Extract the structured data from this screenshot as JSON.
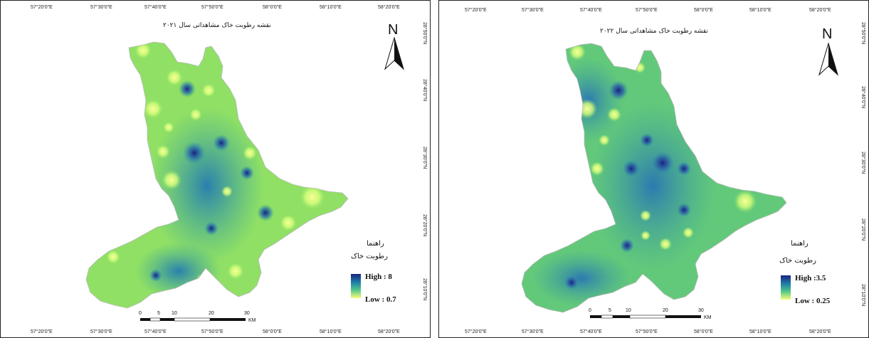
{
  "panels": [
    {
      "title": "نقشه رطوبت خاک مشاهداتی سال ۲۰۲۱",
      "top_labels": [
        "57°20'0\"E",
        "57°30'0\"E",
        "57°40'0\"E",
        "57°50'0\"E",
        "58°0'0\"E",
        "58°10'0\"E",
        "58°20'0\"E"
      ],
      "bottom_labels": [
        "57°20'0\"E",
        "57°30'0\"E",
        "57°40'0\"E",
        "57°50'0\"E",
        "58°0'0\"E",
        "58°10'0\"E",
        "58°20'0\"E"
      ],
      "right_labels": [
        "28°50'0\"N",
        "28°40'0\"N",
        "28°30'0\"N",
        "28°20'0\"N",
        "28°10'0\"N"
      ],
      "north": "N",
      "legend_heading": "راهنما",
      "legend_title": "رطوبت خاک",
      "high": "High : 8",
      "low": "Low : 0.7",
      "scale_labels": [
        "0",
        "5",
        "10",
        "20",
        "30"
      ],
      "scale_unit": "KM"
    },
    {
      "title": "نقشه رطوبت خاک مشاهداتی سال ۲۰۲۲",
      "top_labels": [
        "57°20'0\"E",
        "57°30'0\"E",
        "57°40'0\"E",
        "57°50'0\"E",
        "58°0'0\"E",
        "58°10'0\"E",
        "58°20'0\"E"
      ],
      "bottom_labels": [
        "57°20'0\"E",
        "57°30'0\"E",
        "57°40'0\"E",
        "57°50'0\"E",
        "58°0'0\"E",
        "58°10'0\"E",
        "58°20'0\"E"
      ],
      "right_labels": [
        "28°50'0\"N",
        "28°40'0\"N",
        "28°30'0\"N",
        "28°20'0\"N",
        "28°10'0\"N"
      ],
      "north": "N",
      "legend_heading": "راهنما",
      "legend_title": "رطوبت خاک",
      "high": "High :3.5",
      "low": "Low : 0.25",
      "scale_labels": [
        "0",
        "5",
        "10",
        "20",
        "30"
      ],
      "scale_unit": "KM"
    }
  ],
  "colors": {
    "high": "#1a237e",
    "mid": "#2e9aa0",
    "low_mid": "#7ed957",
    "low": "#f7ff8a"
  }
}
